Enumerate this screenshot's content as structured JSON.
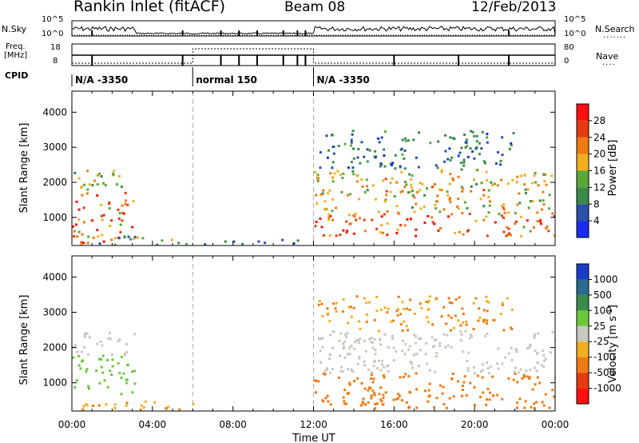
{
  "header": {
    "station": "Rankin Inlet (fitACF)",
    "beam": "Beam 08",
    "date": "12/Feb/2013"
  },
  "noise_panel": {
    "left_label": "N.Sky",
    "left_ticks": [
      "10^5",
      "10^0"
    ],
    "right_ticks": [
      "10^5",
      "10^0"
    ],
    "right_label": "N.Search"
  },
  "freq_panel": {
    "left_label_1": "Freq.",
    "left_label_2": "[MHz]",
    "left_ticks": [
      "18",
      "8"
    ],
    "right_ticks": [
      "80",
      "0"
    ],
    "right_label": "Nave"
  },
  "cpid_panel": {
    "label": "CPID",
    "segments": [
      {
        "text": "N/A -3350",
        "start_h": 0,
        "end_h": 6
      },
      {
        "text": "normal 150",
        "start_h": 6,
        "end_h": 12
      },
      {
        "text": "N/A -3350",
        "start_h": 12,
        "end_h": 24
      }
    ]
  },
  "axes": {
    "ylabel": "Slant Range [km]",
    "yticks": [
      1000,
      2000,
      3000,
      4000
    ],
    "ylim": [
      200,
      4600
    ],
    "xlabel": "Time UT",
    "xticks": [
      "00:00",
      "04:00",
      "08:00",
      "12:00",
      "16:00",
      "20:00",
      "00:00"
    ],
    "xlim_hours": [
      0,
      24
    ]
  },
  "power_scale": {
    "label": "Power [dB]",
    "ticks": [
      "4",
      "8",
      "12",
      "16",
      "20",
      "24",
      "28"
    ],
    "colors": [
      "#1a2cf0",
      "#2a4fa8",
      "#3a8a4a",
      "#5aa83a",
      "#f0b020",
      "#f07a10",
      "#e83a10",
      "#ff1010"
    ]
  },
  "velocity_scale": {
    "label": "Velocity [m s^-1]",
    "ticks": [
      "1000",
      "500",
      "100",
      "25",
      "-25",
      "-100",
      "-500",
      "-1000"
    ],
    "colors": [
      "#1a3cc8",
      "#2a6a8a",
      "#3a8a4a",
      "#6ac83a",
      "#c8c8c0",
      "#f0b020",
      "#f07a10",
      "#e83a10",
      "#ff1010"
    ]
  },
  "chart_data": [
    {
      "type": "heatmap",
      "title": "",
      "xlabel": "Time UT",
      "ylabel": "Slant Range [km]",
      "quantity": "Power [dB]",
      "xlim": [
        0,
        24
      ],
      "ylim": [
        200,
        4600
      ],
      "regions": [
        {
          "t0": 0.0,
          "t1": 3.1,
          "r0": 300,
          "r1": 1800,
          "value": 24
        },
        {
          "t0": 0.0,
          "t1": 2.6,
          "r0": 1800,
          "r1": 2400,
          "value": 16
        },
        {
          "t0": 0.0,
          "t1": 6.0,
          "r0": 250,
          "r1": 500,
          "value": 12
        },
        {
          "t0": 12.0,
          "t1": 24.0,
          "r0": 500,
          "r1": 1100,
          "value": 26
        },
        {
          "t0": 12.0,
          "t1": 24.0,
          "r0": 1100,
          "r1": 2400,
          "value": 18
        },
        {
          "t0": 12.2,
          "t1": 22.0,
          "r0": 2400,
          "r1": 3500,
          "value": 8
        },
        {
          "t0": 6.0,
          "t1": 12.0,
          "r0": 250,
          "r1": 400,
          "value": 6
        }
      ]
    },
    {
      "type": "heatmap",
      "title": "",
      "xlabel": "Time UT",
      "ylabel": "Slant Range [km]",
      "quantity": "Velocity [m s^-1]",
      "xlim": [
        0,
        24
      ],
      "ylim": [
        200,
        4600
      ],
      "regions": [
        {
          "t0": 0.0,
          "t1": 3.1,
          "r0": 700,
          "r1": 1800,
          "value": 60
        },
        {
          "t0": 0.0,
          "t1": 3.1,
          "r0": 1800,
          "r1": 2500,
          "value": 0
        },
        {
          "t0": 0.0,
          "t1": 6.0,
          "r0": 250,
          "r1": 500,
          "value": -100
        },
        {
          "t0": 12.0,
          "t1": 24.0,
          "r0": 300,
          "r1": 1300,
          "value": -300
        },
        {
          "t0": 12.0,
          "t1": 24.0,
          "r0": 1300,
          "r1": 2500,
          "value": 0
        },
        {
          "t0": 12.2,
          "t1": 22.0,
          "r0": 2500,
          "r1": 3500,
          "value": -100
        }
      ]
    }
  ]
}
